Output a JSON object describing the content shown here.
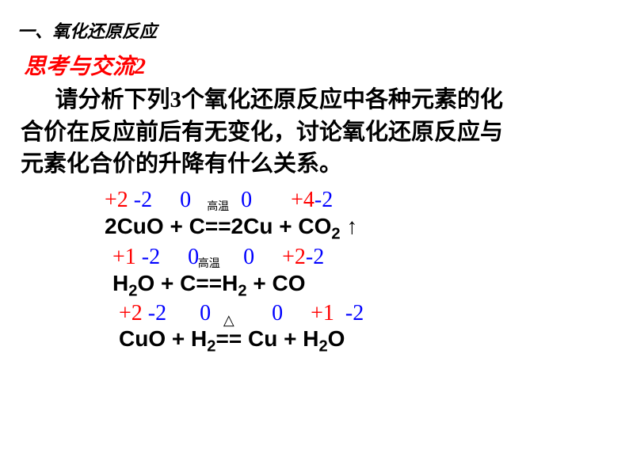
{
  "header": {
    "section": "一、氧化还原反应"
  },
  "think": {
    "title": "思考与交流2"
  },
  "body": {
    "line1": "请分析下列3个氧化还原反应中各种元素的化",
    "line2": "合价在反应前后有无变化，讨论氧化还原反应与",
    "line3": "元素化合价的升降有什么关系。"
  },
  "eq1": {
    "ox": {
      "p1r": "+2",
      "p1b": " -2",
      "gap1": "     ",
      "p2b": "0",
      "gap2": "         ",
      "p3b": "0",
      "gap3": "       ",
      "p4r": "+4",
      "p4b": "-2"
    },
    "r1": "2CuO",
    "plus1": "  +  ",
    "r2": "C",
    "eq": "  ==  ",
    "p1": "2Cu",
    "plus2": "  +  ",
    "p2a": "CO",
    "p2sub": "2",
    "arrow": "↑",
    "cond": "高温"
  },
  "eq2": {
    "ox": {
      "p1r": "+1",
      "p1b": " -2",
      "gap1": "     ",
      "p2b": "0",
      "gap2": "        ",
      "p3b": "0",
      "gap3": "     ",
      "p4r": "+2",
      "p4b": "-2"
    },
    "r1a": "H",
    "r1sub": "2",
    "r1b": "O",
    "plus1": "  +  ",
    "r2": "C",
    "eq": "  ==  ",
    "p1a": "H",
    "p1sub": "2",
    "plus2": " +  ",
    "p2": "CO",
    "cond": "高温"
  },
  "eq3": {
    "ox": {
      "p1r": "+2",
      "p1b": " -2",
      "gap1": "      ",
      "p2b": "0",
      "gap2": "           ",
      "p3b": "0",
      "gap3": "     ",
      "p4r": "+1",
      "p4b": "  -2"
    },
    "r1": "CuO",
    "plus1": "  +  ",
    "r2a": "H",
    "r2sub": "2",
    "eq": " == ",
    "p1": " Cu",
    "plus2": "  +  ",
    "p2a": "H",
    "p2sub": "2",
    "p2b": "O",
    "cond": "△"
  },
  "colors": {
    "red": "#ff0000",
    "blue": "#0000ff",
    "black": "#000000",
    "bg": "#ffffff"
  }
}
